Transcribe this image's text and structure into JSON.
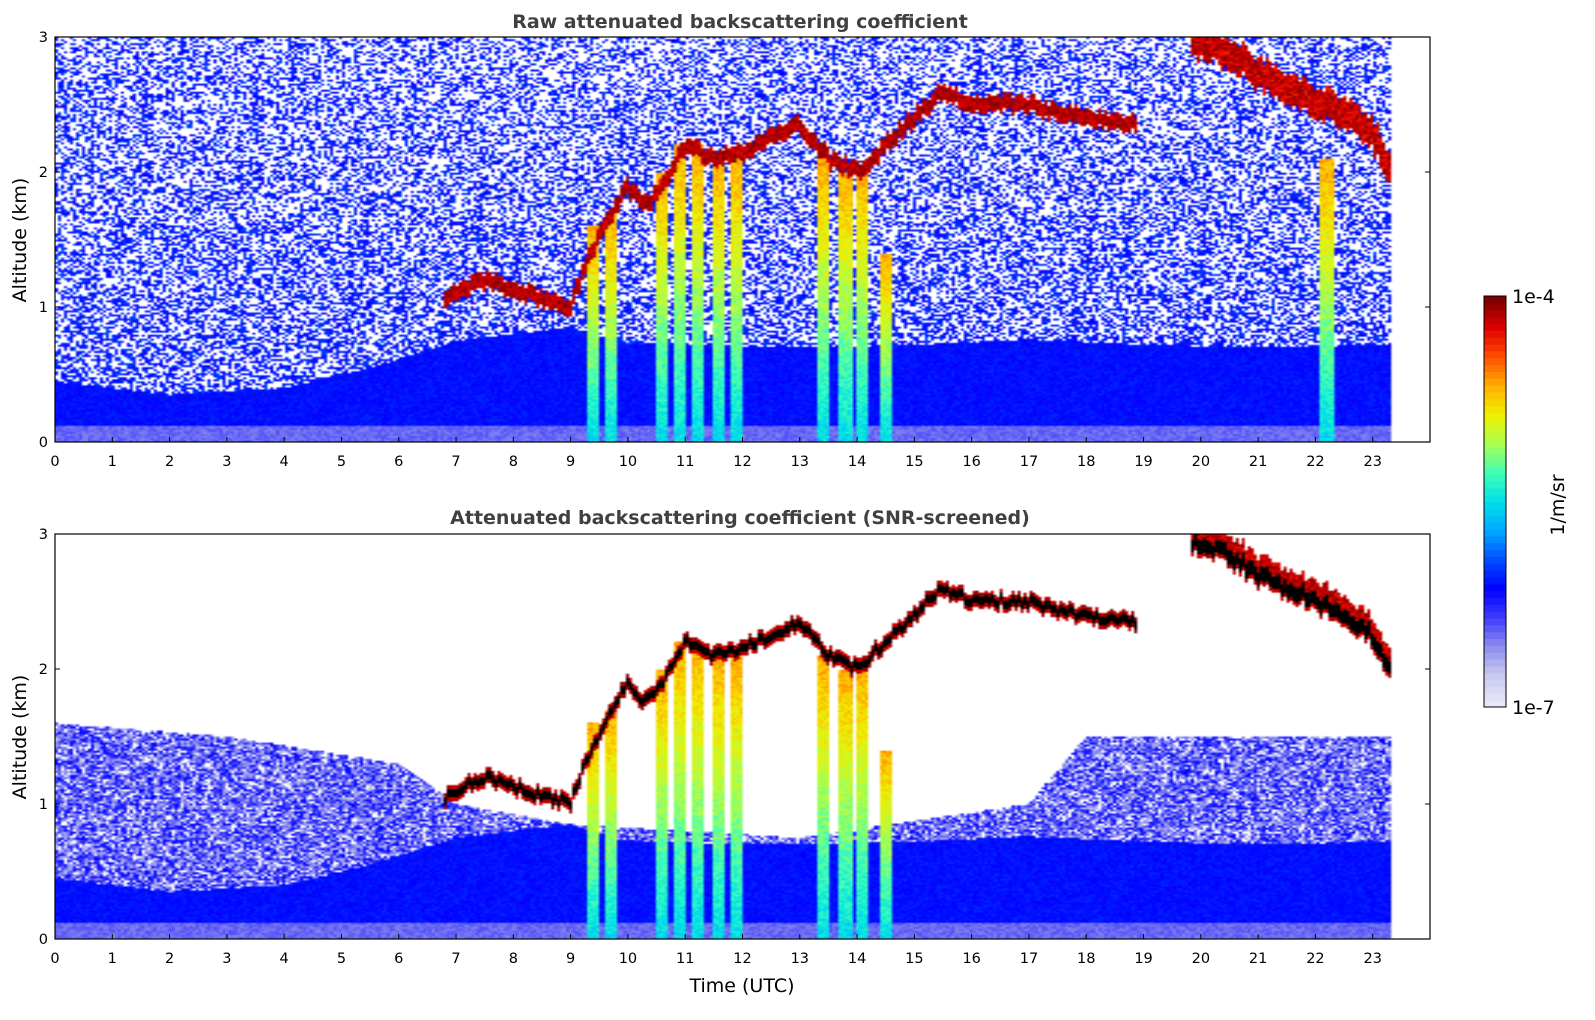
{
  "chart_data": [
    {
      "type": "heatmap",
      "title": "Raw attenuated backscattering coefficient",
      "xlabel": "",
      "ylabel": "Altitude (km)",
      "xlim": [
        0,
        24
      ],
      "ylim": [
        0,
        3
      ],
      "x_ticks": [
        "0",
        "1",
        "2",
        "3",
        "4",
        "5",
        "6",
        "7",
        "8",
        "9",
        "10",
        "11",
        "12",
        "13",
        "14",
        "15",
        "16",
        "17",
        "18",
        "19",
        "20",
        "21",
        "22",
        "23"
      ],
      "y_ticks": [
        "0",
        "1",
        "2",
        "3"
      ],
      "data_end_time": 23.3,
      "screened": false,
      "features": {
        "boundary_layer": [
          [
            0,
            0.45
          ],
          [
            2,
            0.35
          ],
          [
            4,
            0.4
          ],
          [
            5.5,
            0.55
          ],
          [
            7,
            0.75
          ],
          [
            9,
            0.85
          ],
          [
            10,
            0.72
          ],
          [
            13,
            0.7
          ],
          [
            15,
            0.72
          ],
          [
            17,
            0.76
          ],
          [
            19,
            0.72
          ],
          [
            21,
            0.7
          ],
          [
            23.3,
            0.72
          ]
        ],
        "cloud_layer": [
          [
            6.8,
            1.05
          ],
          [
            7.5,
            1.2
          ],
          [
            8.2,
            1.1
          ],
          [
            9,
            1.0
          ],
          [
            9.3,
            1.35
          ],
          [
            9.6,
            1.6
          ],
          [
            10,
            1.9
          ],
          [
            10.3,
            1.75
          ],
          [
            10.6,
            1.9
          ],
          [
            11,
            2.2
          ],
          [
            11.5,
            2.1
          ],
          [
            12,
            2.15
          ],
          [
            12.5,
            2.25
          ],
          [
            13,
            2.35
          ],
          [
            13.5,
            2.1
          ],
          [
            14,
            2.0
          ],
          [
            14.5,
            2.2
          ],
          [
            15,
            2.4
          ],
          [
            15.5,
            2.6
          ],
          [
            16,
            2.5
          ],
          [
            17,
            2.5
          ],
          [
            18,
            2.4
          ],
          [
            18.9,
            2.35
          ]
        ],
        "high_cloud_layer": [
          [
            19.8,
            2.95
          ],
          [
            20.5,
            2.85
          ],
          [
            21,
            2.7
          ],
          [
            21.5,
            2.6
          ],
          [
            22,
            2.5
          ],
          [
            22.5,
            2.4
          ],
          [
            23,
            2.25
          ],
          [
            23.3,
            2.0
          ]
        ],
        "precipitation_streaks": [
          [
            9.4,
            1.6
          ],
          [
            9.7,
            1.7
          ],
          [
            10.6,
            2.0
          ],
          [
            10.9,
            2.2
          ],
          [
            11.2,
            2.2
          ],
          [
            11.6,
            2.1
          ],
          [
            11.9,
            2.1
          ],
          [
            13.4,
            2.1
          ],
          [
            13.8,
            2.0
          ],
          [
            14.1,
            2.0
          ],
          [
            14.5,
            1.4
          ],
          [
            22.2,
            2.1
          ]
        ]
      }
    },
    {
      "type": "heatmap",
      "title": "Attenuated backscattering coefficient (SNR-screened)",
      "xlabel": "Time (UTC)",
      "ylabel": "Altitude (km)",
      "xlim": [
        0,
        24
      ],
      "ylim": [
        0,
        3
      ],
      "x_ticks": [
        "0",
        "1",
        "2",
        "3",
        "4",
        "5",
        "6",
        "7",
        "8",
        "9",
        "10",
        "11",
        "12",
        "13",
        "14",
        "15",
        "16",
        "17",
        "18",
        "19",
        "20",
        "21",
        "22",
        "23"
      ],
      "y_ticks": [
        "0",
        "1",
        "2",
        "3"
      ],
      "data_end_time": 23.3,
      "screened": true,
      "features": {
        "boundary_layer": [
          [
            0,
            0.45
          ],
          [
            2,
            0.35
          ],
          [
            4,
            0.4
          ],
          [
            5.5,
            0.55
          ],
          [
            7,
            0.75
          ],
          [
            9,
            0.85
          ],
          [
            10,
            0.72
          ],
          [
            13,
            0.7
          ],
          [
            15,
            0.72
          ],
          [
            17,
            0.76
          ],
          [
            19,
            0.72
          ],
          [
            21,
            0.7
          ],
          [
            23.3,
            0.72
          ]
        ],
        "aerosol_top": [
          [
            0,
            1.6
          ],
          [
            3,
            1.5
          ],
          [
            6,
            1.3
          ],
          [
            7,
            1.0
          ],
          [
            9,
            0.85
          ],
          [
            13,
            0.75
          ],
          [
            17,
            1.0
          ],
          [
            18,
            1.5
          ],
          [
            20,
            1.5
          ],
          [
            23.3,
            1.5
          ]
        ],
        "cloud_layer": [
          [
            6.8,
            1.05
          ],
          [
            7.5,
            1.2
          ],
          [
            8.2,
            1.1
          ],
          [
            9,
            1.0
          ],
          [
            9.3,
            1.35
          ],
          [
            9.6,
            1.6
          ],
          [
            10,
            1.9
          ],
          [
            10.3,
            1.75
          ],
          [
            10.6,
            1.9
          ],
          [
            11,
            2.2
          ],
          [
            11.5,
            2.1
          ],
          [
            12,
            2.15
          ],
          [
            12.5,
            2.25
          ],
          [
            13,
            2.35
          ],
          [
            13.5,
            2.1
          ],
          [
            14,
            2.0
          ],
          [
            14.5,
            2.2
          ],
          [
            15,
            2.4
          ],
          [
            15.5,
            2.6
          ],
          [
            16,
            2.5
          ],
          [
            17,
            2.5
          ],
          [
            18,
            2.4
          ],
          [
            18.9,
            2.35
          ]
        ],
        "high_cloud_layer": [
          [
            19.8,
            2.95
          ],
          [
            20.5,
            2.85
          ],
          [
            21,
            2.7
          ],
          [
            21.5,
            2.6
          ],
          [
            22,
            2.5
          ],
          [
            22.5,
            2.4
          ],
          [
            23,
            2.25
          ],
          [
            23.3,
            2.0
          ]
        ]
      }
    }
  ],
  "colorbar": {
    "label": "1/m/sr",
    "max_label": "1e-4",
    "min_label": "1e-7",
    "min_value": 1e-07,
    "max_value": 0.0001,
    "scale": "log",
    "colormap": "jet",
    "colors": [
      "#e8e8f8",
      "#c8c8f0",
      "#8c8cf0",
      "#3c3cfc",
      "#0000ff",
      "#0050ff",
      "#00a8ff",
      "#00e0e8",
      "#40ffb8",
      "#a8ff50",
      "#f0f000",
      "#ffb000",
      "#ff5000",
      "#e00000",
      "#800000"
    ]
  }
}
